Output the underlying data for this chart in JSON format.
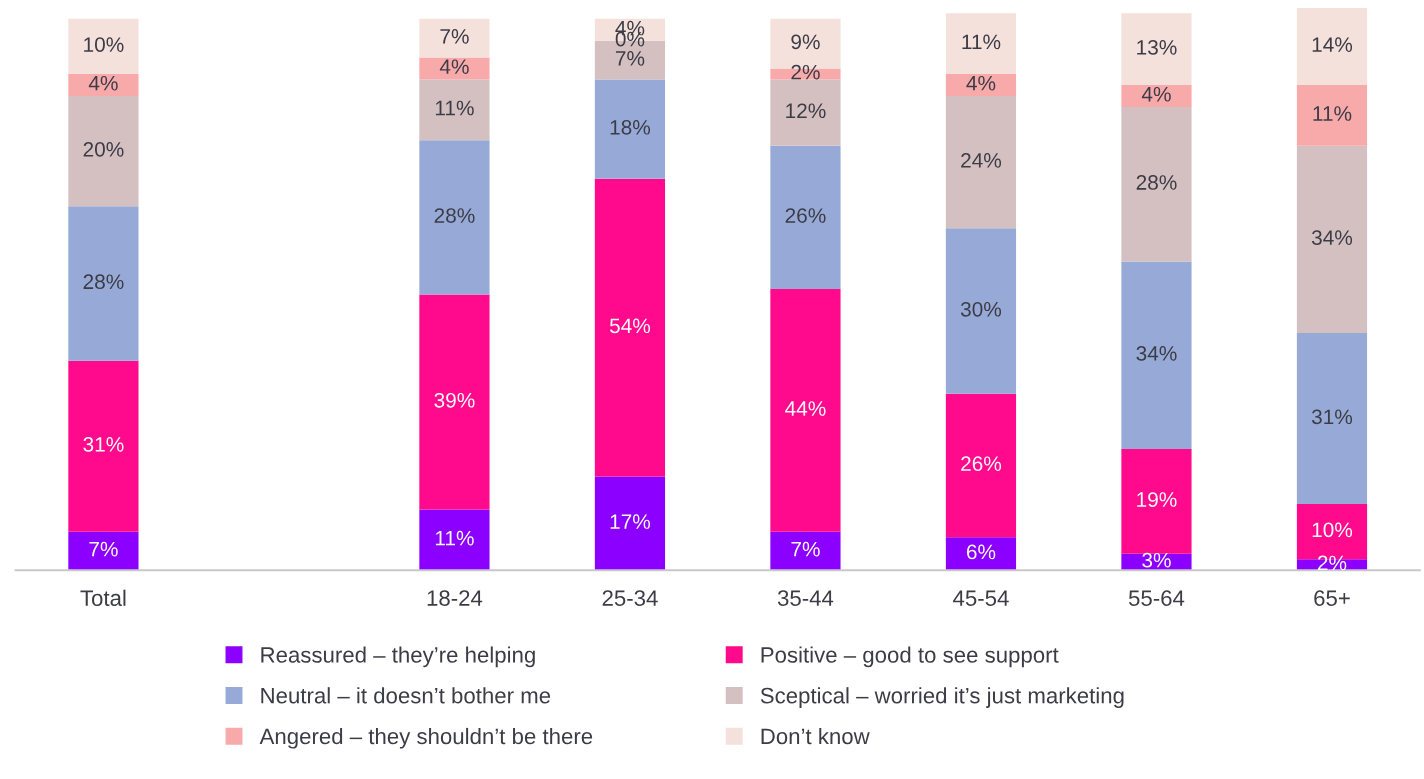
{
  "chart_data": {
    "type": "bar",
    "stacked": true,
    "legend": "bottom",
    "grid": false,
    "categories": [
      "Total",
      null,
      "18-24",
      "25-34",
      "35-44",
      "45-54",
      "55-64",
      "65+"
    ],
    "series": [
      {
        "name": "Reassured – they’re helping",
        "color": "#8c00ff",
        "values": [
          7,
          null,
          11,
          17,
          7,
          6,
          3,
          2
        ],
        "value_labels": [
          "7%",
          null,
          "11%",
          "17%",
          "7%",
          "6%",
          "3%",
          "2%"
        ]
      },
      {
        "name": "Positive – good to see support",
        "color": "#ff0a8c",
        "values": [
          31,
          null,
          39,
          54,
          44,
          26,
          19,
          10
        ],
        "value_labels": [
          "31%",
          null,
          "39%",
          "54%",
          "44%",
          "26%",
          "19%",
          "10%"
        ]
      },
      {
        "name": "Neutral – it doesn’t bother me",
        "color": "#97aad7",
        "values": [
          28,
          null,
          28,
          18,
          26,
          30,
          34,
          31
        ],
        "value_labels": [
          "28%",
          null,
          "28%",
          "18%",
          "26%",
          "30%",
          "34%",
          "31%"
        ]
      },
      {
        "name": "Sceptical – worried it’s just marketing",
        "color": "#d4c0c1",
        "values": [
          20,
          null,
          11,
          7,
          12,
          24,
          28,
          34
        ],
        "value_labels": [
          "20%",
          null,
          "11%",
          "7%",
          "12%",
          "24%",
          "28%",
          "34%"
        ]
      },
      {
        "name": "Angered – they shouldn’t be there",
        "color": "#f8aaab",
        "values": [
          4,
          null,
          4,
          0,
          2,
          4,
          4,
          11
        ],
        "value_labels": [
          "4%",
          null,
          "4%",
          "0%",
          "2%",
          "4%",
          "4%",
          "11%"
        ]
      },
      {
        "name": "Don’t know",
        "color": "#f5e1dc",
        "values": [
          10,
          null,
          7,
          4,
          9,
          11,
          13,
          14
        ],
        "value_labels": [
          "10%",
          null,
          "7%",
          "4%",
          "9%",
          "11%",
          "13%",
          "14%"
        ]
      }
    ]
  }
}
